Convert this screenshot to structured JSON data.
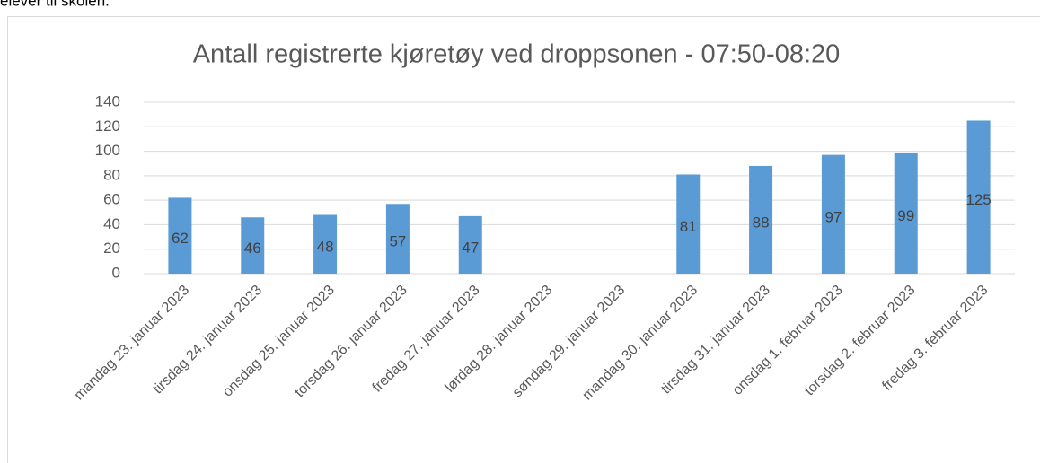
{
  "caption": "elever til skolen.",
  "chart_data": {
    "type": "bar",
    "title": "Antall registrerte kjøretøy ved droppsonen - 07:50-08:20",
    "categories": [
      "mandag 23. januar 2023",
      "tirsdag 24. januar 2023",
      "onsdag 25. januar 2023",
      "torsdag 26. januar 2023",
      "fredag 27. januar 2023",
      "lørdag 28. januar 2023",
      "søndag 29. januar 2023",
      "mandag 30. januar 2023",
      "tirsdag 31. januar 2023",
      "onsdag 1. februar 2023",
      "torsdag 2. februar 2023",
      "fredag 3. februar 2023"
    ],
    "values": [
      62,
      46,
      48,
      57,
      47,
      null,
      null,
      81,
      88,
      97,
      99,
      125
    ],
    "color": "#5b9bd5",
    "ylim": [
      0,
      140
    ],
    "yticks": [
      0,
      20,
      40,
      60,
      80,
      100,
      120,
      140
    ],
    "grid": true
  }
}
